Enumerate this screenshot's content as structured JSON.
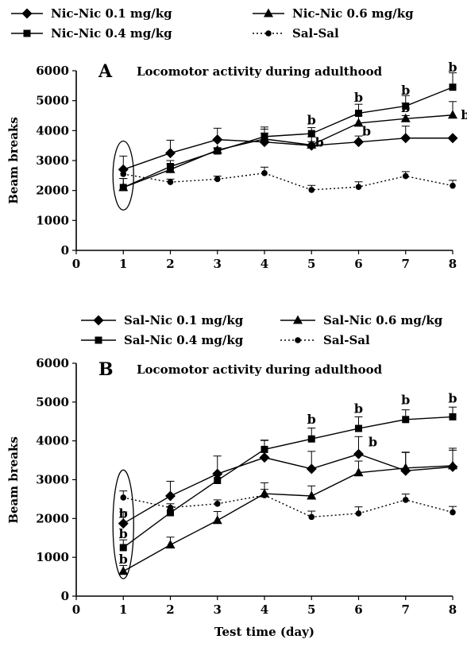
{
  "chart_data": [
    {
      "type": "line",
      "panel_label": "A",
      "title": "Locomotor activity during adulthood",
      "xlabel": "",
      "ylabel": "Beam breaks",
      "xlim": [
        0,
        8
      ],
      "ylim": [
        0,
        6000
      ],
      "x_ticks": [
        "0",
        "1",
        "2",
        "3",
        "4",
        "5",
        "6",
        "7",
        "8"
      ],
      "y_ticks": [
        "0",
        "1000",
        "2000",
        "3000",
        "4000",
        "5000",
        "6000"
      ],
      "x": [
        1,
        2,
        3,
        4,
        5,
        6,
        7,
        8
      ],
      "series": [
        {
          "name": "Nic-Nic 0.1 mg/kg",
          "marker": "diamond",
          "dashed": false,
          "values": [
            2700,
            3250,
            3700,
            3620,
            3500,
            3620,
            3750,
            3750
          ],
          "errors": [
            450,
            430,
            380,
            300,
            130,
            200,
            400,
            0
          ]
        },
        {
          "name": "Nic-Nic 0.6 mg/kg",
          "marker": "triangle",
          "dashed": false,
          "values": [
            2100,
            2700,
            3350,
            3720,
            3520,
            4250,
            4400,
            4520
          ],
          "errors": [
            300,
            180,
            80,
            400,
            270,
            250,
            100,
            450
          ]
        },
        {
          "name": "Nic-Nic 0.4 mg/kg",
          "marker": "square",
          "dashed": false,
          "values": [
            2100,
            2800,
            3320,
            3800,
            3900,
            4580,
            4820,
            5450
          ],
          "errors": [
            300,
            200,
            100,
            250,
            200,
            300,
            350,
            480
          ]
        },
        {
          "name": "Sal-Sal",
          "marker": "circle",
          "dashed": true,
          "values": [
            2550,
            2280,
            2380,
            2580,
            2020,
            2120,
            2480,
            2160
          ],
          "errors": [
            120,
            100,
            100,
            200,
            150,
            170,
            150,
            180
          ]
        }
      ],
      "annotations": [
        {
          "x": 5,
          "y": 4210,
          "text": "b",
          "dx": 0
        },
        {
          "x": 5,
          "y": 3460,
          "text": "b",
          "dx": 10
        },
        {
          "x": 6,
          "y": 4960,
          "text": "b",
          "dx": 0
        },
        {
          "x": 6,
          "y": 3840,
          "text": "b",
          "dx": 10
        },
        {
          "x": 7,
          "y": 5200,
          "text": "b",
          "dx": 0
        },
        {
          "x": 7,
          "y": 4620,
          "text": "b",
          "dx": 0
        },
        {
          "x": 8,
          "y": 5970,
          "text": "b",
          "dx": 0
        },
        {
          "x": 8,
          "y": 4380,
          "text": "b",
          "dx": 16
        }
      ],
      "ellipse": {
        "cx": 1,
        "cy": 2500,
        "rx": 0.22,
        "ry": 1150
      }
    },
    {
      "type": "line",
      "panel_label": "B",
      "title": "Locomotor activity during adulthood",
      "xlabel": "Test time (day)",
      "ylabel": "Beam breaks",
      "xlim": [
        0,
        8
      ],
      "ylim": [
        0,
        6000
      ],
      "x_ticks": [
        "0",
        "1",
        "2",
        "3",
        "4",
        "5",
        "6",
        "7",
        "8"
      ],
      "y_ticks": [
        "0",
        "1000",
        "2000",
        "3000",
        "4000",
        "5000",
        "6000"
      ],
      "x": [
        1,
        2,
        3,
        4,
        5,
        6,
        7,
        8
      ],
      "series": [
        {
          "name": "Sal-Nic 0.1 mg/kg",
          "marker": "diamond",
          "dashed": false,
          "values": [
            1870,
            2580,
            3150,
            3570,
            3280,
            3660,
            3230,
            3330
          ],
          "errors": [
            300,
            380,
            460,
            450,
            450,
            450,
            480,
            480
          ]
        },
        {
          "name": "Sal-Nic 0.6 mg/kg",
          "marker": "triangle",
          "dashed": false,
          "values": [
            640,
            1320,
            1950,
            2640,
            2580,
            3180,
            3300,
            3360
          ],
          "errors": [
            150,
            200,
            230,
            280,
            260,
            300,
            400,
            400
          ]
        },
        {
          "name": "Sal-Nic 0.4 mg/kg",
          "marker": "square",
          "dashed": false,
          "values": [
            1250,
            2150,
            2980,
            3780,
            4050,
            4320,
            4550,
            4620
          ],
          "errors": [
            200,
            150,
            200,
            230,
            280,
            300,
            250,
            250
          ]
        },
        {
          "name": "Sal-Sal",
          "marker": "circle",
          "dashed": true,
          "values": [
            2540,
            2280,
            2380,
            2600,
            2040,
            2130,
            2480,
            2160
          ],
          "errors": [
            170,
            100,
            100,
            150,
            150,
            170,
            150,
            150
          ]
        }
      ],
      "annotations": [
        {
          "x": 1,
          "y": 2020,
          "text": "b",
          "dx": 0
        },
        {
          "x": 1,
          "y": 1490,
          "text": "b",
          "dx": 0
        },
        {
          "x": 1,
          "y": 840,
          "text": "b",
          "dx": 0
        },
        {
          "x": 5,
          "y": 4440,
          "text": "b",
          "dx": 0
        },
        {
          "x": 6,
          "y": 4720,
          "text": "b",
          "dx": 0
        },
        {
          "x": 6,
          "y": 3860,
          "text": "b",
          "dx": 18
        },
        {
          "x": 7,
          "y": 4950,
          "text": "b",
          "dx": 0
        },
        {
          "x": 8,
          "y": 4990,
          "text": "b",
          "dx": 0
        }
      ],
      "ellipse": {
        "cx": 1,
        "cy": 1850,
        "rx": 0.22,
        "ry": 1400
      }
    }
  ]
}
